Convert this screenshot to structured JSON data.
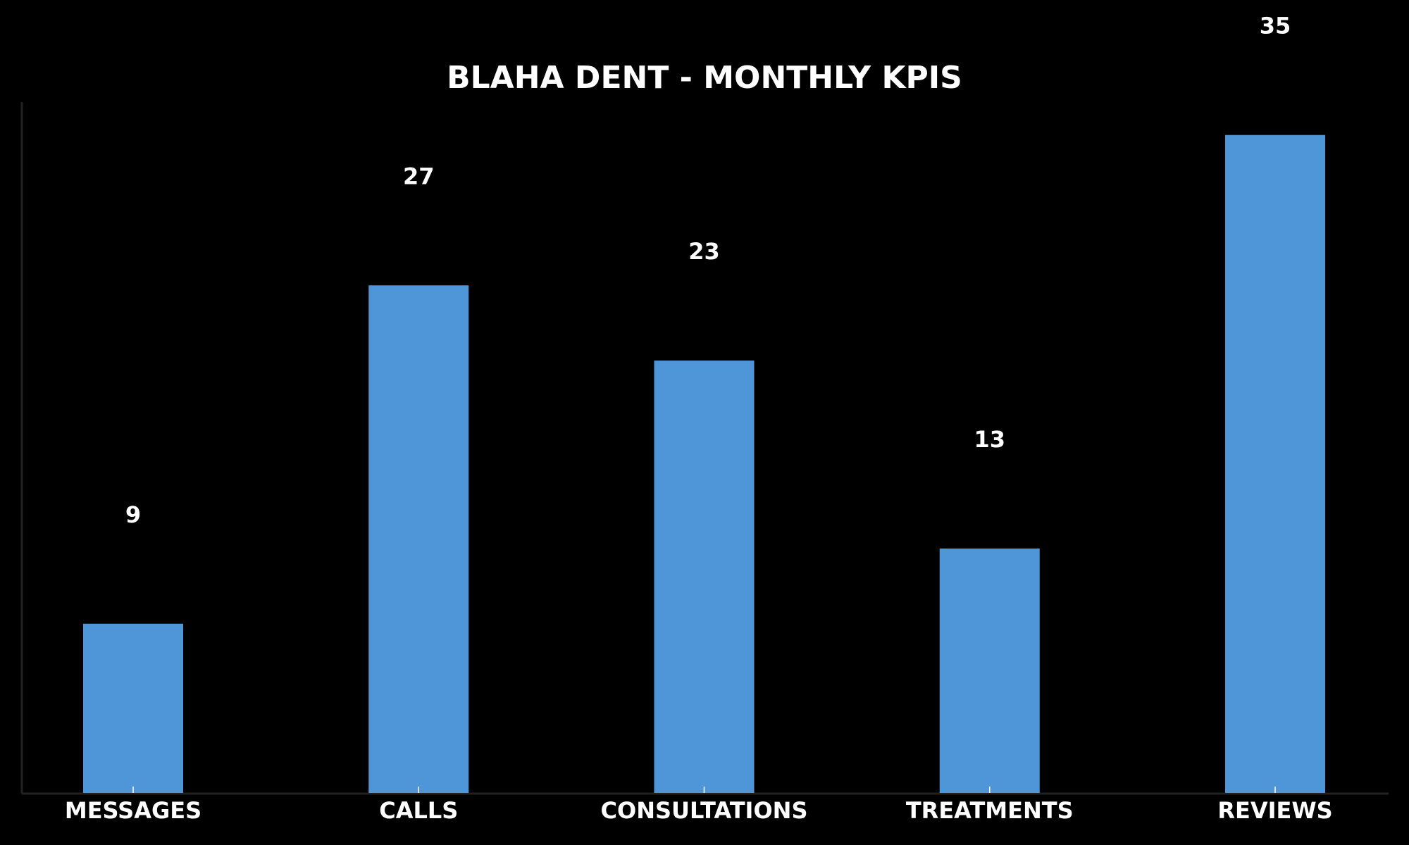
{
  "chart_data": {
    "type": "bar",
    "title": "BLAHA DENT - MONTHLY KPIS",
    "categories": [
      "MESSAGES",
      "CALLS",
      "CONSULTATIONS",
      "TREATMENTS",
      "REVIEWS"
    ],
    "values": [
      9,
      27,
      23,
      13,
      35
    ],
    "color": "#4f96d8",
    "ylim": [
      0,
      36.75
    ]
  }
}
